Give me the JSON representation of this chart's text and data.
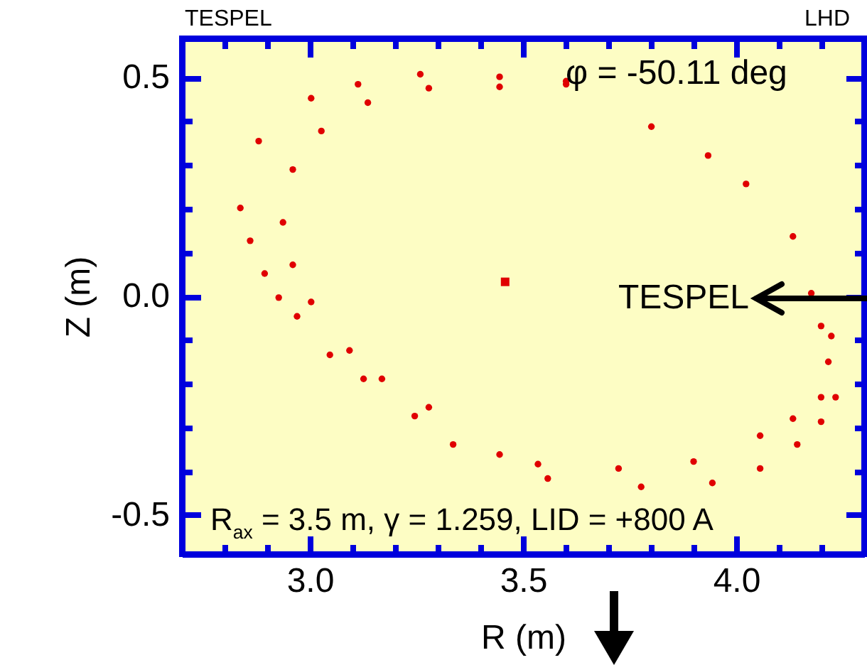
{
  "chart_data": {
    "type": "scatter",
    "xlabel": "R (m)",
    "ylabel": "Z (m)",
    "xlim": [
      2.7,
      4.3
    ],
    "ylim": [
      -0.59,
      0.59
    ],
    "xticks": [
      {
        "value": 2.8,
        "label": null
      },
      {
        "value": 2.9,
        "label": null
      },
      {
        "value": 3.0,
        "label": "3.0"
      },
      {
        "value": 3.1,
        "label": null
      },
      {
        "value": 3.2,
        "label": null
      },
      {
        "value": 3.3,
        "label": null
      },
      {
        "value": 3.4,
        "label": null
      },
      {
        "value": 3.5,
        "label": "3.5"
      },
      {
        "value": 3.6,
        "label": null
      },
      {
        "value": 3.7,
        "label": null
      },
      {
        "value": 3.8,
        "label": null
      },
      {
        "value": 3.9,
        "label": null
      },
      {
        "value": 4.0,
        "label": "4.0"
      },
      {
        "value": 4.1,
        "label": null
      },
      {
        "value": 4.2,
        "label": null
      }
    ],
    "yticks": [
      {
        "value": -0.5,
        "label": "-0.5"
      },
      {
        "value": -0.4,
        "label": null
      },
      {
        "value": -0.3,
        "label": null
      },
      {
        "value": -0.2,
        "label": null
      },
      {
        "value": -0.1,
        "label": null
      },
      {
        "value": 0.0,
        "label": "0.0"
      },
      {
        "value": 0.1,
        "label": null
      },
      {
        "value": 0.2,
        "label": null
      },
      {
        "value": 0.3,
        "label": null
      },
      {
        "value": 0.4,
        "label": null
      },
      {
        "value": 0.5,
        "label": "0.5"
      }
    ],
    "grid": false,
    "series": [
      {
        "color": "#e00000",
        "marker": "circle",
        "x": [
          2.937,
          2.96,
          3.027,
          3.136,
          3.279,
          3.445,
          3.601,
          3.801,
          3.934,
          4.023,
          4.133,
          4.176,
          4.199,
          4.216,
          4.199,
          4.133,
          4.056,
          3.9,
          3.724,
          3.535,
          3.336,
          3.279,
          3.169,
          3.093,
          3.003,
          2.96,
          2.837,
          2.88,
          3.003,
          3.113,
          3.259,
          3.445,
          3.601,
          2.86,
          2.894,
          2.927,
          2.97,
          3.047,
          3.126,
          3.246,
          3.445,
          3.558,
          3.777,
          3.944,
          4.056,
          4.143,
          4.199,
          4.233,
          4.223
        ],
        "values": [
          0.169,
          0.29,
          0.378,
          0.443,
          0.476,
          0.479,
          0.485,
          0.388,
          0.322,
          0.257,
          0.137,
          0.007,
          -0.068,
          -0.15,
          -0.231,
          -0.28,
          -0.319,
          -0.378,
          -0.394,
          -0.384,
          -0.339,
          -0.254,
          -0.189,
          -0.124,
          -0.013,
          0.072,
          0.202,
          0.355,
          0.453,
          0.485,
          0.508,
          0.502,
          0.492,
          0.127,
          0.052,
          -0.003,
          -0.046,
          -0.134,
          -0.189,
          -0.274,
          -0.362,
          -0.417,
          -0.436,
          -0.427,
          -0.394,
          -0.339,
          -0.287,
          -0.231,
          -0.091
        ]
      },
      {
        "color": "#e00000",
        "marker": "square",
        "x": [
          3.458
        ],
        "values": [
          0.033
        ]
      }
    ],
    "annotations": [
      "φ = -50.11 deg",
      "R$_{ax}$ = 3.5 m, γ = 1.259, LID = +800 A",
      "TESPEL",
      "TESPEL",
      "LHD"
    ]
  }
}
